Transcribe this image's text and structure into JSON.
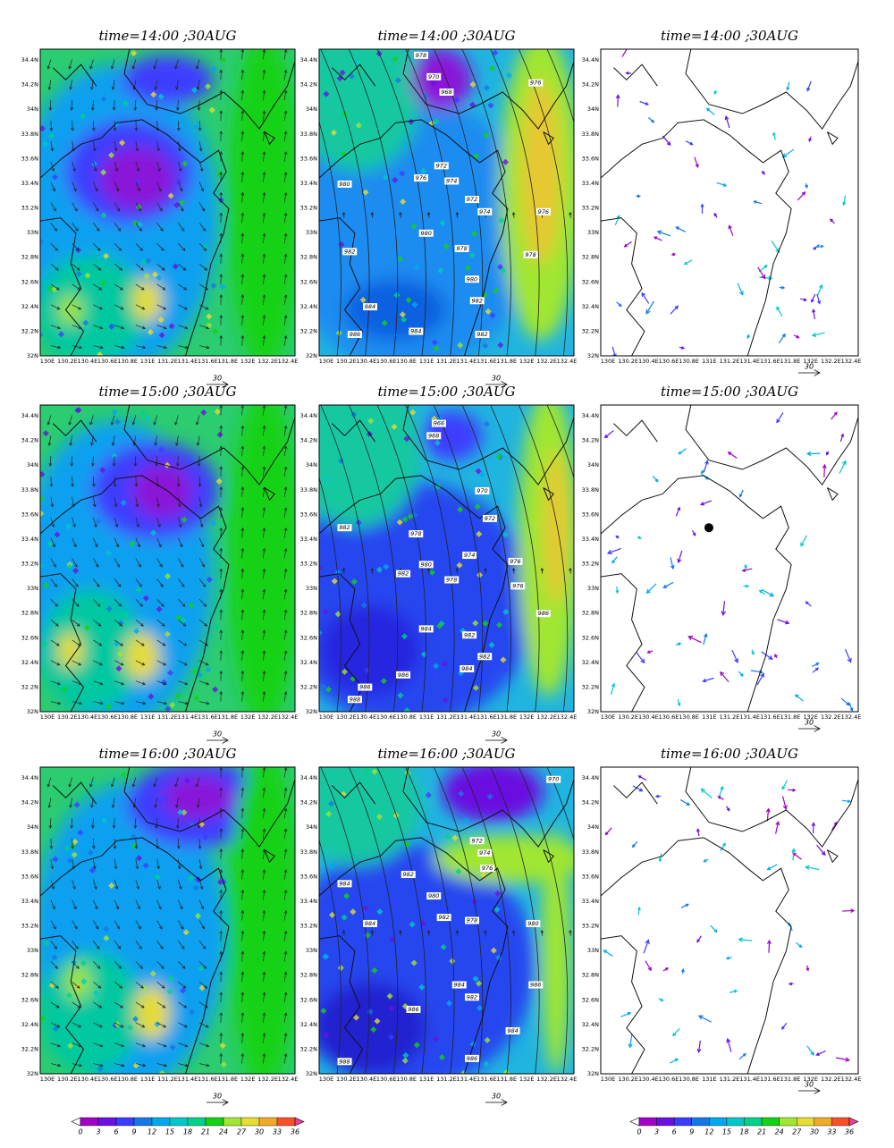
{
  "panels": [
    {
      "title": "time=14:00 ;30AUG"
    },
    {
      "title": "time=14:00 ;30AUG",
      "contour_labels": [
        "978",
        "970",
        "968",
        "976",
        "980",
        "976",
        "972",
        "974",
        "972",
        "974",
        "976",
        "980",
        "978",
        "982",
        "980",
        "978",
        "984",
        "982",
        "986",
        "984",
        "982"
      ]
    },
    {
      "title": "time=14:00 ;30AUG"
    },
    {
      "title": "time=15:00 ;30AUG"
    },
    {
      "title": "time=15:00 ;30AUG",
      "contour_labels": [
        "966",
        "968",
        "970",
        "972",
        "982",
        "978",
        "982",
        "980",
        "974",
        "976",
        "976",
        "978",
        "986",
        "984",
        "982",
        "982",
        "984",
        "986",
        "988",
        "986"
      ]
    },
    {
      "title": "time=15:00 ;30AUG"
    },
    {
      "title": "time=16:00 ;30AUG"
    },
    {
      "title": "time=16:00 ;30AUG",
      "contour_labels": [
        "970",
        "972",
        "974",
        "976",
        "984",
        "982",
        "980",
        "984",
        "982",
        "978",
        "980",
        "984",
        "982",
        "986",
        "986",
        "984",
        "988",
        "986"
      ]
    },
    {
      "title": "time=16:00 ;30AUG"
    }
  ],
  "lat_ticks": [
    "34.4N",
    "34.2N",
    "34N",
    "33.8N",
    "33.6N",
    "33.4N",
    "33.2N",
    "33N",
    "32.8N",
    "32.6N",
    "32.4N",
    "32.2N",
    "32N"
  ],
  "lon_ticks": [
    "130E",
    "130.2E",
    "130.4E",
    "130.6E",
    "130.8E",
    "131E",
    "131.2E",
    "131.4E",
    "131.6E",
    "131.8E",
    "132E",
    "132.2E",
    "132.4E"
  ],
  "reference_vector": "30",
  "colorbar_labels": [
    "0",
    "3",
    "6",
    "9",
    "12",
    "15",
    "18",
    "21",
    "24",
    "27",
    "30",
    "33",
    "36"
  ]
}
